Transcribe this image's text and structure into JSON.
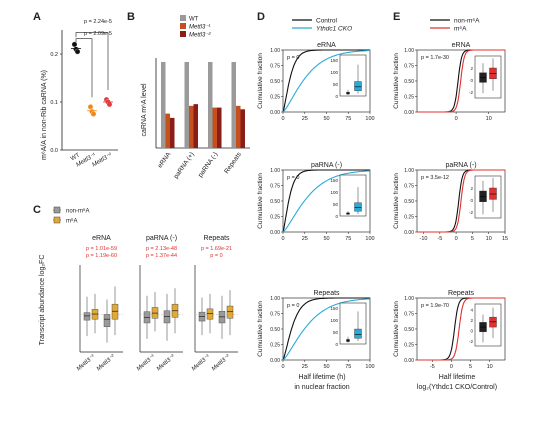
{
  "figure": {
    "panel_letters": [
      "A",
      "B",
      "C",
      "D",
      "E"
    ]
  },
  "colors": {
    "wt": "#9a9a9a",
    "mettl3_1": "#c4501e",
    "mettl3_2": "#8a1d18",
    "point_wt": "#111111",
    "point_m1": "#f08a1c",
    "point_m2": "#e23a3a",
    "box_non": "#9a9a9a",
    "box_m6a": "#e3aa33",
    "control": "#111111",
    "cko": "#2aaad8",
    "non_m6a": "#111111",
    "m6a": "#e0302f",
    "sig_text": "#e0302f"
  },
  "chart_data": [
    {
      "panel": "A",
      "type": "scatter",
      "ylabel": "m⁶A/A in non-Rib caRNA (%)",
      "categories": [
        "WT",
        "Mettl3⁻¹",
        "Mettl3⁻²"
      ],
      "yticks": [
        0.0,
        0.1,
        0.2
      ],
      "ylim": [
        0,
        0.25
      ],
      "series": [
        {
          "values": [
            0.22,
            0.21,
            0.205
          ]
        },
        {
          "values": [
            0.09,
            0.08,
            0.075
          ]
        },
        {
          "values": [
            0.105,
            0.1,
            0.095
          ]
        }
      ],
      "annotations": [
        "p = 2.24e-5",
        "p = 2.09e-5"
      ]
    },
    {
      "panel": "B",
      "type": "bar",
      "ylabel": "caRNA m⁶A level",
      "categories": [
        "eRNA",
        "paRNA (+)",
        "paRNA (-)",
        "Repeats"
      ],
      "ylim": [
        0,
        1.0
      ],
      "legend": [
        "WT",
        "Mettl3⁻¹",
        "Mettl3⁻²"
      ],
      "series": [
        {
          "name": "WT",
          "values": [
            1.0,
            1.0,
            1.0,
            1.0
          ]
        },
        {
          "name": "Mettl3⁻¹",
          "values": [
            0.4,
            0.49,
            0.47,
            0.49
          ]
        },
        {
          "name": "Mettl3⁻²",
          "values": [
            0.35,
            0.51,
            0.47,
            0.45
          ]
        }
      ]
    },
    {
      "panel": "C",
      "type": "box",
      "ylabel": "Transcript abundance log₂FC",
      "legend": [
        "non-m⁶A",
        "m⁶A"
      ],
      "ylim": [
        -4,
        4
      ],
      "groups": [
        {
          "title": "eRNA",
          "pvals": [
            "p = 1.01e-59",
            "p = 1.19e-60"
          ],
          "boxes": [
            {
              "q": [
                -2.3,
                -0.6,
                -0.15,
                0.2,
                1.9
              ],
              "color": "non"
            },
            {
              "q": [
                -2.0,
                -0.5,
                0.05,
                0.55,
                2.2
              ],
              "color": "m6a"
            },
            {
              "q": [
                -3.0,
                -1.3,
                -0.5,
                0.0,
                1.6
              ],
              "color": "non"
            },
            {
              "q": [
                -2.2,
                -0.5,
                0.35,
                1.1,
                3.0
              ],
              "color": "m6a"
            }
          ],
          "xlabels": [
            "Mettl3⁻¹",
            "Mettl3⁻²"
          ]
        },
        {
          "title": "paRNA (-)",
          "pvals": [
            "p = 2.13e-48",
            "p = 1.37e-44"
          ],
          "boxes": [
            {
              "q": [
                -2.6,
                -0.9,
                -0.3,
                0.3,
                2.0
              ],
              "color": "non"
            },
            {
              "q": [
                -1.8,
                -0.4,
                0.15,
                0.75,
                2.4
              ],
              "color": "m6a"
            },
            {
              "q": [
                -2.8,
                -0.9,
                -0.2,
                0.4,
                2.2
              ],
              "color": "non"
            },
            {
              "q": [
                -2.0,
                -0.3,
                0.4,
                1.1,
                2.8
              ],
              "color": "m6a"
            }
          ],
          "xlabels": [
            "Mettl3⁻¹",
            "Mettl3⁻²"
          ]
        },
        {
          "title": "Repeats",
          "pvals": [
            "p = 1.69e-21",
            "p = 0"
          ],
          "boxes": [
            {
              "q": [
                -2.2,
                -0.7,
                -0.2,
                0.25,
                1.8
              ],
              "color": "non"
            },
            {
              "q": [
                -2.0,
                -0.5,
                0.1,
                0.6,
                2.2
              ],
              "color": "m6a"
            },
            {
              "q": [
                -2.6,
                -0.9,
                -0.25,
                0.35,
                2.0
              ],
              "color": "non"
            },
            {
              "q": [
                -2.2,
                -0.4,
                0.3,
                0.9,
                2.6
              ],
              "color": "m6a"
            }
          ],
          "xlabels": [
            "Mettl3⁻¹",
            "Mettl3⁻²"
          ]
        }
      ]
    },
    {
      "panel": "D",
      "type": "line",
      "legend": [
        "Control",
        "Ythdc1 CKO"
      ],
      "xlabel": "Half lifetime (h)",
      "xlabel2": "in nuclear fraction",
      "ylabel": "Cumulative fraction",
      "xlim": [
        0,
        100
      ],
      "xticks": [
        0,
        25,
        50,
        75,
        100
      ],
      "yticks": [
        0.0,
        0.25,
        0.5,
        0.75,
        1.0
      ],
      "inset_yticks": [
        0,
        50,
        100,
        150
      ],
      "inset_ylim": [
        0,
        170
      ],
      "inset_xticks": [
        "",
        ""
      ],
      "subplots": [
        {
          "title": "eRNA",
          "pval": "p = 0",
          "control_mid": 9,
          "cko_mid": 28,
          "inset": [
            {
              "q": [
                5,
                8,
                12,
                16,
                25
              ],
              "color": "control"
            },
            {
              "q": [
                10,
                22,
                38,
                60,
                130
              ],
              "color": "cko"
            }
          ]
        },
        {
          "title": "paRNA (-)",
          "pval": "p = 0",
          "control_mid": 8,
          "cko_mid": 30,
          "inset": [
            {
              "q": [
                4,
                7,
                10,
                13,
                20
              ],
              "color": "control"
            },
            {
              "q": [
                8,
                20,
                35,
                55,
                120
              ],
              "color": "cko"
            }
          ]
        },
        {
          "title": "Repeats",
          "pval": "p = 0",
          "control_mid": 12,
          "cko_mid": 30,
          "inset": [
            {
              "q": [
                6,
                10,
                14,
                19,
                30
              ],
              "color": "control"
            },
            {
              "q": [
                12,
                24,
                40,
                62,
                135
              ],
              "color": "cko"
            }
          ]
        }
      ]
    },
    {
      "panel": "E",
      "type": "line",
      "legend": [
        "non-m⁶A",
        "m⁶A"
      ],
      "xlabel": "Half lifetime",
      "xlabel2": "log₂(Ythdc1 CKO/Control)",
      "ylabel": "Cumulative fraction",
      "yticks": [
        0.0,
        0.25,
        0.5,
        0.75,
        1.0
      ],
      "subplots": [
        {
          "title": "eRNA",
          "pval": "p = 1.7e-30",
          "xlim": [
            -12,
            15
          ],
          "xticks": [
            0,
            10
          ],
          "non_mid": 0.6,
          "m6a_mid": 1.4,
          "scale": 0.55,
          "inset_ylim": [
            -3,
            4
          ],
          "inset_yticks": [
            -2,
            0,
            2
          ],
          "inset": [
            {
              "q": [
                -2.2,
                -0.4,
                0.4,
                1.2,
                2.8
              ],
              "color": "non"
            },
            {
              "q": [
                -1.8,
                0.2,
                1.1,
                2.0,
                3.6
              ],
              "color": "m6a"
            }
          ]
        },
        {
          "title": "paRNA (-)",
          "pval": "p = 3.5e-12",
          "xlim": [
            -12,
            15
          ],
          "xticks": [
            -10,
            -5,
            0,
            5,
            10,
            15
          ],
          "non_mid": 0.8,
          "m6a_mid": 1.5,
          "scale": 0.55,
          "inset_ylim": [
            -3,
            4
          ],
          "inset_yticks": [
            -2,
            0,
            2
          ],
          "inset": [
            {
              "q": [
                -2.4,
                -0.3,
                0.6,
                1.5,
                3.2
              ],
              "color": "non"
            },
            {
              "q": [
                -2.0,
                0.1,
                1.0,
                2.0,
                3.7
              ],
              "color": "m6a"
            }
          ]
        },
        {
          "title": "Repeats",
          "pval": "p = 1.9e-70",
          "xlim": [
            -9,
            14
          ],
          "xticks": [
            -5,
            0,
            5,
            10
          ],
          "non_mid": 0.8,
          "m6a_mid": 2.0,
          "scale": 0.5,
          "inset_ylim": [
            -3,
            5
          ],
          "inset_yticks": [
            -2,
            0,
            2,
            4
          ],
          "inset": [
            {
              "q": [
                -2.3,
                -0.3,
                0.6,
                1.5,
                3.0
              ],
              "color": "non"
            },
            {
              "q": [
                -1.5,
                0.6,
                1.6,
                2.5,
                4.3
              ],
              "color": "m6a"
            }
          ]
        }
      ]
    }
  ]
}
